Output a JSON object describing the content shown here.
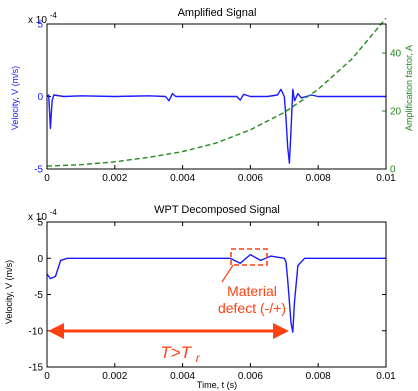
{
  "colors": {
    "velocity": "#1a1aff",
    "amplification": "#228b22",
    "annotation": "#ff4010",
    "axis": "#000000"
  },
  "chart_data": [
    {
      "type": "line",
      "title": "Amplified Signal",
      "xlabel": "",
      "ylabel": "Velocity, V (m/s)",
      "ylabel_right": "Amplification factor, A",
      "scale_label": "x 10",
      "scale_exp": "-4",
      "xlim": [
        0,
        0.01
      ],
      "ylim": [
        -5,
        5
      ],
      "ylim_right": [
        0,
        50
      ],
      "xticks": [
        "0",
        "0.002",
        "0.004",
        "0.006",
        "0.008",
        "0.01"
      ],
      "yticks": [
        "-5",
        "0",
        "5"
      ],
      "yticks_right": [
        "0",
        "20",
        "40"
      ],
      "series": [
        {
          "axis": "left",
          "style": "solid",
          "x": [
            0,
            5e-05,
            0.0001,
            0.00015,
            0.0002,
            0.0005,
            0.001,
            0.002,
            0.003,
            0.0035,
            0.0036,
            0.0037,
            0.0038,
            0.004,
            0.005,
            0.0056,
            0.0057,
            0.0058,
            0.006,
            0.0065,
            0.0068,
            0.0069,
            0.007,
            0.00705,
            0.0071,
            0.00715,
            0.0072,
            0.00725,
            0.0073,
            0.0074,
            0.0075,
            0.0078,
            0.008,
            0.009,
            0.01
          ],
          "values": [
            0,
            0.1,
            -2.2,
            -0.3,
            0.1,
            0,
            0.05,
            0,
            0.05,
            0,
            -0.3,
            0.2,
            0,
            0,
            0,
            0,
            -0.25,
            0.15,
            0,
            0,
            0.1,
            0.5,
            0,
            -1.5,
            -3.5,
            -4.6,
            -2.2,
            0.5,
            -0.3,
            0.2,
            -0.1,
            0.1,
            0,
            0,
            0
          ]
        },
        {
          "axis": "right",
          "style": "dashed",
          "x": [
            0,
            0.001,
            0.002,
            0.003,
            0.004,
            0.005,
            0.006,
            0.007,
            0.008,
            0.009,
            0.01
          ],
          "values": [
            1,
            1.5,
            2.5,
            4,
            6,
            9,
            13.5,
            19.5,
            27.5,
            38,
            52
          ]
        }
      ]
    },
    {
      "type": "line",
      "title": "WPT Decomposed Signal",
      "xlabel": "Time, t (s)",
      "ylabel": "Velocity, V (m/s)",
      "scale_label": "x 10",
      "scale_exp": "-4",
      "xlim": [
        0,
        0.01
      ],
      "ylim": [
        -15,
        5
      ],
      "xticks": [
        "0",
        "0.002",
        "0.004",
        "0.006",
        "0.008",
        "0.01"
      ],
      "yticks": [
        "-15",
        "-10",
        "-5",
        "0",
        "5"
      ],
      "series": [
        {
          "axis": "left",
          "style": "solid",
          "x": [
            0,
            0.0001,
            0.00025,
            0.0004,
            0.0006,
            0.001,
            0.002,
            0.003,
            0.004,
            0.005,
            0.0054,
            0.0057,
            0.006,
            0.0063,
            0.0066,
            0.007,
            0.00705,
            0.0071,
            0.00715,
            0.0072,
            0.00725,
            0.0073,
            0.0074,
            0.0076,
            0.008,
            0.009,
            0.01
          ],
          "values": [
            -2.2,
            -2.8,
            -2.5,
            -0.3,
            0,
            0,
            0,
            0,
            0,
            0,
            0,
            -0.7,
            0.5,
            -0.3,
            0.3,
            0,
            -0.5,
            -3,
            -6,
            -9,
            -10.2,
            -6,
            -1,
            0,
            0,
            0,
            0
          ]
        }
      ],
      "annotations": {
        "defect_label_1": "Material",
        "defect_label_2": "defect (-/+)",
        "threshold_T": "T>T",
        "threshold_sub": "r"
      }
    }
  ]
}
